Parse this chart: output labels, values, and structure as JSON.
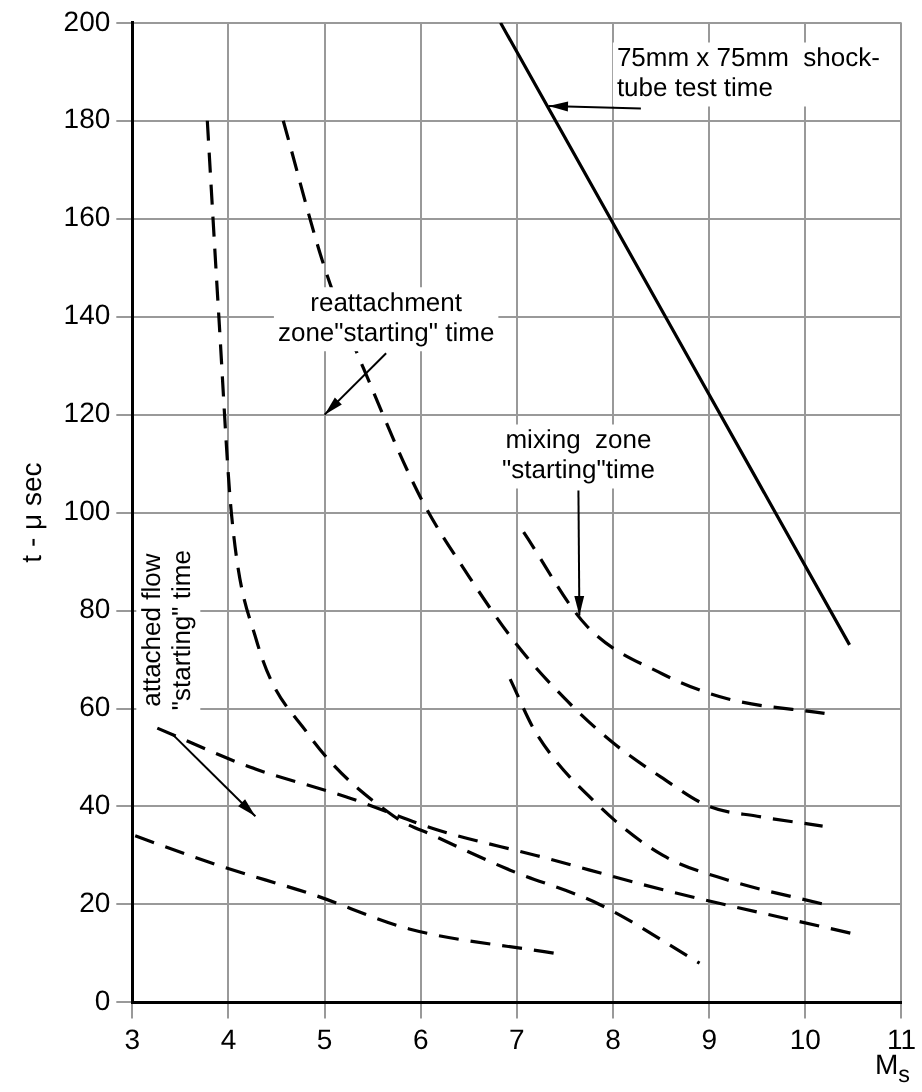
{
  "chart_data": {
    "type": "line",
    "xlabel": "M$_{s}$",
    "ylabel": "t - μ sec",
    "xlim": [
      3,
      11
    ],
    "ylim": [
      0,
      200
    ],
    "xticks": [
      3,
      4,
      5,
      6,
      7,
      8,
      9,
      10,
      11
    ],
    "yticks": [
      0,
      20,
      40,
      60,
      80,
      100,
      120,
      140,
      160,
      180,
      200
    ],
    "grid": true,
    "legend": false,
    "marker": "none",
    "series": [
      {
        "color": "#000000",
        "line_style": "solid",
        "x": [
          6.83,
          10.46
        ],
        "values": [
          200,
          73
        ]
      },
      {
        "color": "#000000",
        "line_style": "dashed",
        "x": [
          4.57,
          5,
          5.5,
          6,
          6.5,
          7,
          7.5,
          8,
          8.5,
          9,
          9.5,
          10.18
        ],
        "values": [
          180,
          150,
          125,
          103,
          87,
          73,
          62,
          53,
          46,
          40,
          38,
          36
        ]
      },
      {
        "color": "#000000",
        "line_style": "dashed",
        "x": [
          3.78,
          3.9,
          4.03,
          4.29,
          4.82,
          5.72,
          6.14,
          6.93,
          7.86,
          8.9
        ],
        "values": [
          180,
          140,
          100,
          74,
          55,
          38,
          34,
          27,
          20,
          8
        ]
      },
      {
        "color": "#000000",
        "line_style": "dashed",
        "x": [
          7.07,
          7.72,
          8.52,
          9.19,
          10.2
        ],
        "values": [
          96,
          77,
          67,
          62,
          59
        ]
      },
      {
        "color": "#000000",
        "line_style": "dashed",
        "x": [
          6.93,
          7.2,
          7.86,
          8.52,
          9.19,
          10.2
        ],
        "values": [
          66,
          55,
          40,
          30,
          25,
          20
        ]
      },
      {
        "color": "#000000",
        "line_style": "dashed",
        "x": [
          3.26,
          4.23,
          5.22,
          6.21,
          7.2,
          8.52,
          10.5
        ],
        "values": [
          56,
          48,
          42,
          35,
          30,
          23,
          14
        ]
      },
      {
        "color": "#000000",
        "line_style": "dashed",
        "x": [
          3.03,
          3.89,
          4.88,
          5.88,
          7.4
        ],
        "values": [
          34,
          28,
          22,
          15,
          10
        ]
      }
    ],
    "annotations": [
      {
        "text": "75mm x 75mm  shock-\ntube test time",
        "x": 7.33,
        "y": 183
      },
      "reattachment\nzone\"starting\" time",
      {
        "text": "mixing  zone\n\"starting\"time",
        "x": 7.65,
        "y": 79
      },
      "attached flow\n\"starting\" time"
    ]
  }
}
